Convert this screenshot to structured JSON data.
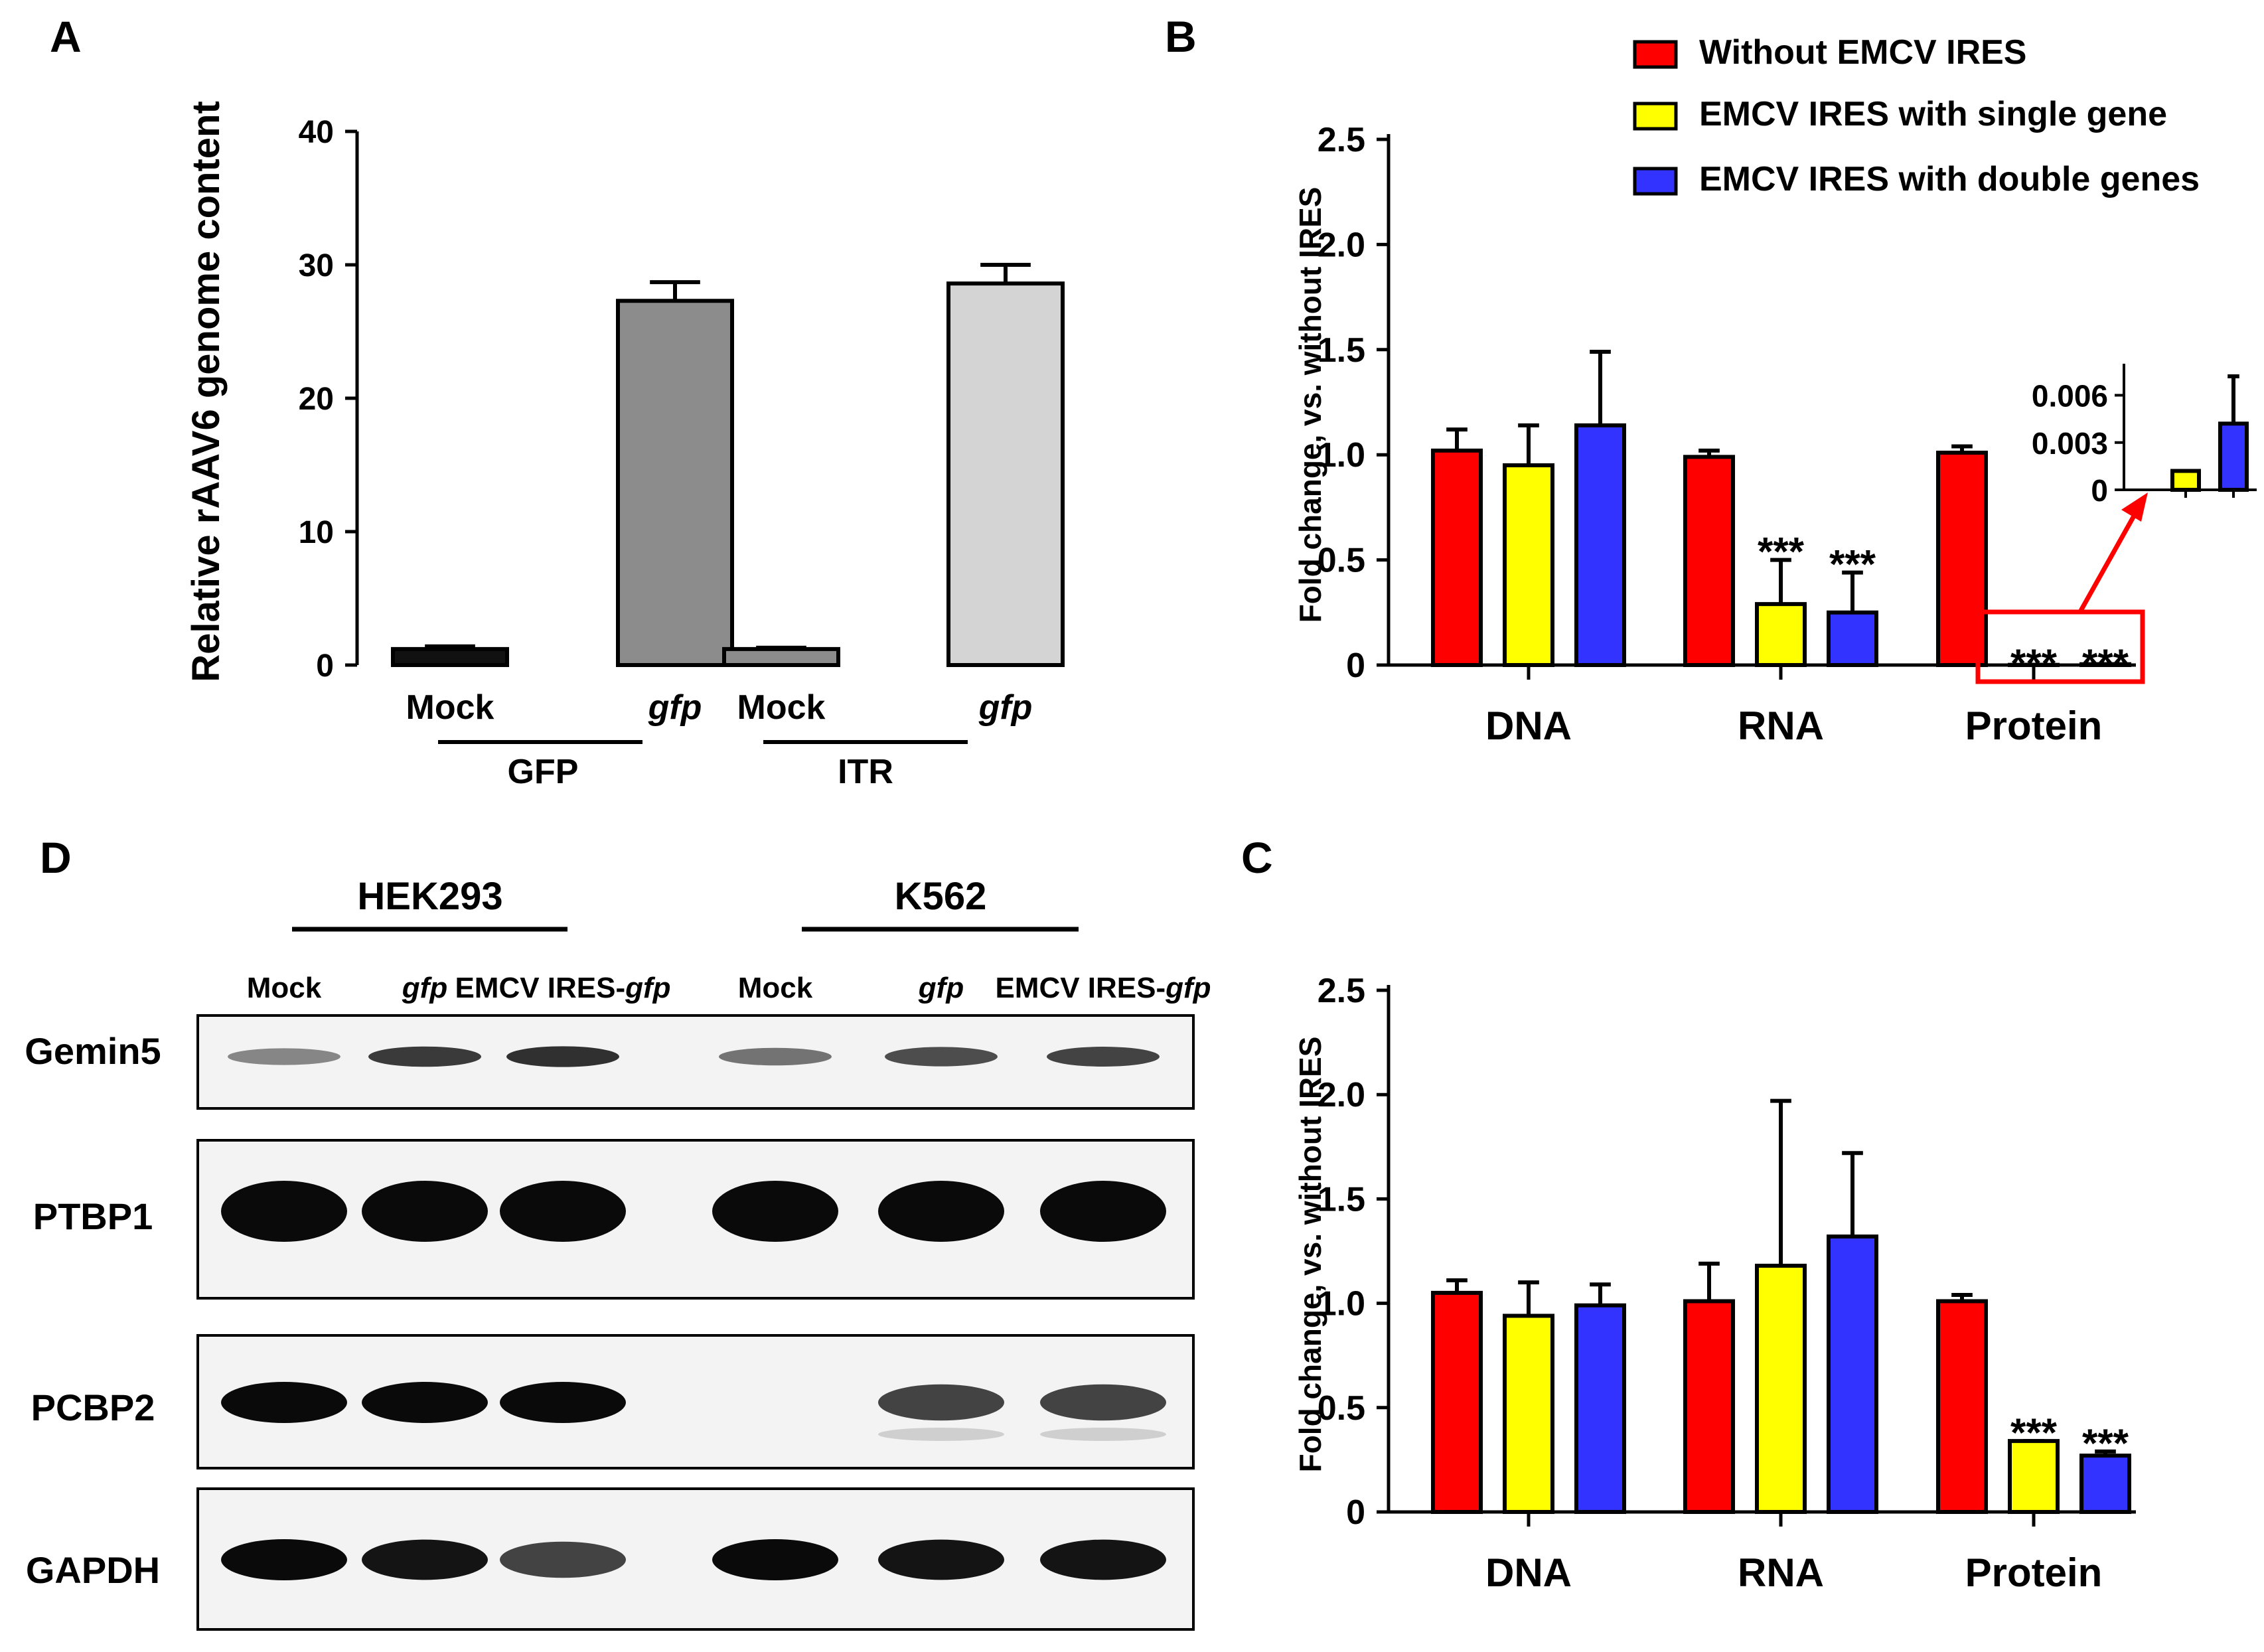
{
  "colors": {
    "red": "#ff0000",
    "yellow": "#ffff00",
    "blue": "#3333ff",
    "dark": "#111111",
    "gray": "#8c8c8c",
    "light": "#d4d4d4",
    "highlight": "#ff0000"
  },
  "panels": {
    "A": {
      "letter": "A"
    },
    "B": {
      "letter": "B"
    },
    "C": {
      "letter": "C"
    },
    "D": {
      "letter": "D"
    }
  },
  "legend": {
    "items": [
      {
        "label": "Without EMCV IRES",
        "color": "#ff0000"
      },
      {
        "label": "EMCV IRES with single gene",
        "color": "#ffff00"
      },
      {
        "label": "EMCV IRES with double genes",
        "color": "#3333ff"
      }
    ]
  },
  "chart_data": [
    {
      "panel": "A",
      "type": "bar",
      "ylabel": "Relative rAAV6 genome content",
      "ylim": [
        0,
        40
      ],
      "yticks": [
        0,
        10,
        20,
        30,
        40
      ],
      "categories": [
        "Mock",
        "gfp",
        "Mock",
        "gfp"
      ],
      "groups": [
        {
          "label": "GFP",
          "categories": [
            "Mock",
            "gfp"
          ]
        },
        {
          "label": "ITR",
          "categories": [
            "Mock",
            "gfp"
          ]
        }
      ],
      "bars": [
        {
          "category": "Mock",
          "group": "GFP",
          "value": 1.2,
          "error": 0.2,
          "color": "#111111"
        },
        {
          "category": "gfp",
          "group": "GFP",
          "value": 27.3,
          "error": 1.4,
          "color": "#8c8c8c"
        },
        {
          "category": "Mock",
          "group": "ITR",
          "value": 1.2,
          "error": 0.1,
          "color": "#8c8c8c"
        },
        {
          "category": "gfp",
          "group": "ITR",
          "value": 28.6,
          "error": 1.4,
          "color": "#d4d4d4"
        }
      ]
    },
    {
      "panel": "B",
      "type": "bar",
      "ylabel": "Fold change, vs. without IRES",
      "ylim": [
        0,
        2.5
      ],
      "yticks": [
        "0",
        "0.5",
        "1.0",
        "1.5",
        "2.0",
        "2.5"
      ],
      "categories": [
        "DNA",
        "RNA",
        "Protein"
      ],
      "series": [
        {
          "name": "Without EMCV IRES",
          "values": [
            1.02,
            0.99,
            1.01
          ],
          "errors": [
            0.1,
            0.03,
            0.03
          ]
        },
        {
          "name": "EMCV IRES with single gene",
          "values": [
            0.95,
            0.29,
            0.001
          ],
          "errors": [
            0.19,
            0.21,
            0.0
          ]
        },
        {
          "name": "EMCV IRES with double genes",
          "values": [
            1.14,
            0.25,
            0.004
          ],
          "errors": [
            0.35,
            0.19,
            0.0
          ]
        }
      ],
      "annotations": [
        {
          "category": "RNA",
          "series": "EMCV IRES with single gene",
          "text": "***"
        },
        {
          "category": "RNA",
          "series": "EMCV IRES with double genes",
          "text": "***"
        },
        {
          "category": "Protein",
          "series": "EMCV IRES with single gene",
          "text": "***"
        },
        {
          "category": "Protein",
          "series": "EMCV IRES with double genes",
          "text": "***"
        }
      ],
      "inset": {
        "ylim": [
          0,
          0.008
        ],
        "yticks": [
          "0",
          "0.003",
          "0.006"
        ],
        "bars": [
          {
            "series": "EMCV IRES with single gene",
            "value": 0.0012,
            "error": 0.0
          },
          {
            "series": "EMCV IRES with double genes",
            "value": 0.0042,
            "error": 0.003
          }
        ]
      }
    },
    {
      "panel": "C",
      "type": "bar",
      "ylabel": "Fold change, vs. without IRES",
      "ylim": [
        0,
        2.5
      ],
      "yticks": [
        "0",
        "0.5",
        "1.0",
        "1.5",
        "2.0",
        "2.5"
      ],
      "categories": [
        "DNA",
        "RNA",
        "Protein"
      ],
      "series": [
        {
          "name": "Without EMCV IRES",
          "values": [
            1.05,
            1.01,
            1.01
          ],
          "errors": [
            0.06,
            0.18,
            0.03
          ]
        },
        {
          "name": "EMCV IRES with single gene",
          "values": [
            0.94,
            1.18,
            0.34
          ],
          "errors": [
            0.16,
            0.79,
            0.0
          ]
        },
        {
          "name": "EMCV IRES with double genes",
          "values": [
            0.99,
            1.32,
            0.27
          ],
          "errors": [
            0.1,
            0.4,
            0.02
          ]
        }
      ],
      "annotations": [
        {
          "category": "Protein",
          "series": "EMCV IRES with single gene",
          "text": "***"
        },
        {
          "category": "Protein",
          "series": "EMCV IRES with double genes",
          "text": "***"
        }
      ]
    }
  ],
  "blot": {
    "cell_lines": [
      "HEK293",
      "K562"
    ],
    "lanes": [
      "Mock",
      "gfp",
      "EMCV IRES-gfp",
      "Mock",
      "gfp",
      "EMCV IRES-gfp"
    ],
    "lane_italic": [
      {
        "prefix": "",
        "italic": ""
      },
      {
        "prefix": "",
        "italic": "gfp"
      },
      {
        "prefix": "EMCV IRES-",
        "italic": "gfp"
      },
      {
        "prefix": "Mock",
        "italic": ""
      },
      {
        "prefix": "",
        "italic": "gfp"
      },
      {
        "prefix": "EMCV IRES-",
        "italic": "gfp"
      }
    ],
    "rows": [
      {
        "protein": "Gemin5",
        "intensities": [
          0.35,
          0.75,
          0.8,
          0.45,
          0.65,
          0.7
        ]
      },
      {
        "protein": "PTBP1",
        "intensities": [
          1.0,
          1.0,
          1.0,
          1.0,
          1.0,
          1.0
        ]
      },
      {
        "protein": "PCBP2",
        "intensities": [
          1.0,
          1.0,
          1.0,
          0.0,
          0.7,
          0.7
        ]
      },
      {
        "protein": "GAPDH",
        "intensities": [
          1.0,
          0.95,
          0.7,
          1.0,
          0.95,
          0.95
        ]
      }
    ]
  }
}
